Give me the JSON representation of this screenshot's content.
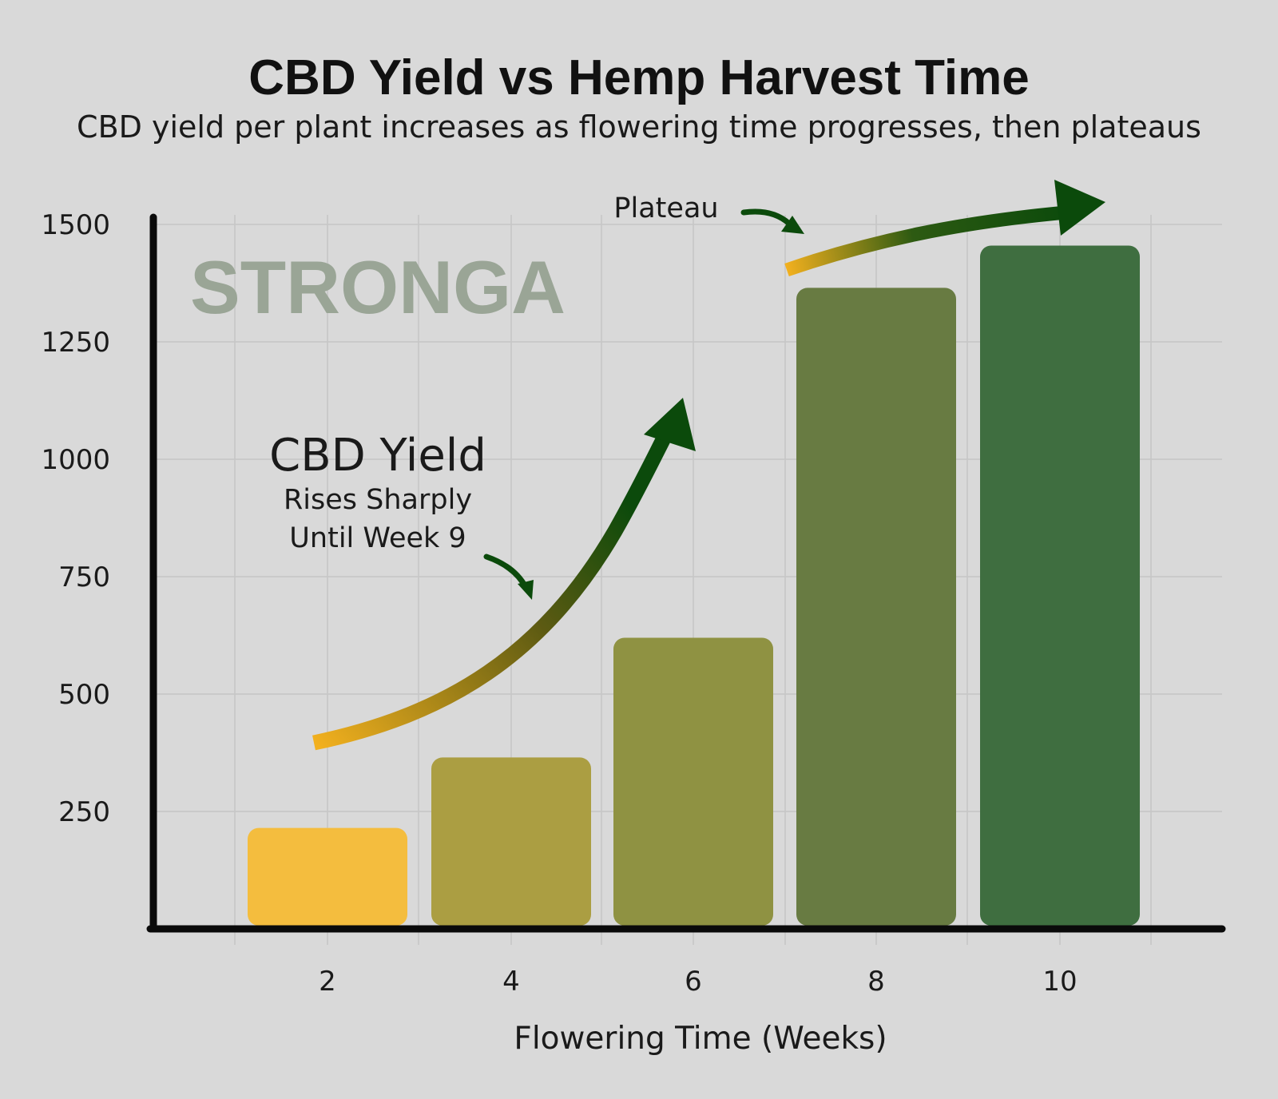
{
  "title": "CBD Yield vs Hemp Harvest Time",
  "subtitle": "CBD yield per plant increases as flowering time progresses, then plateaus",
  "watermark": "STRONGA",
  "annotations": {
    "yield_heading": "CBD Yield",
    "yield_line1": "Rises Sharply",
    "yield_line2": "Until Week 9",
    "plateau": "Plateau"
  },
  "colors": {
    "background": "#d9d9d9",
    "grid": "#c6c6c6",
    "axis": "#0a0a0a",
    "arrow_dark": "#0b4a0b",
    "arrow_light": "#f2b01e"
  },
  "chart_data": {
    "type": "bar",
    "title": "CBD Yield vs Hemp Harvest Time",
    "subtitle": "CBD yield per plant increases as flowering time progresses, then plateaus",
    "xlabel": "Flowering Time (Weeks)",
    "ylabel": "",
    "categories": [
      "2",
      "4",
      "6",
      "8",
      "10"
    ],
    "values": [
      215,
      365,
      620,
      1365,
      1455
    ],
    "bar_colors": [
      "#f4bd3e",
      "#ab9e42",
      "#8f9242",
      "#687b42",
      "#3f6e40"
    ],
    "yticks": [
      250,
      500,
      750,
      1000,
      1250,
      1500
    ],
    "ylim": [
      0,
      1500
    ],
    "grid": true,
    "legend": "none"
  }
}
